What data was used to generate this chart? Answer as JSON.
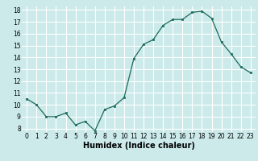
{
  "x": [
    0,
    1,
    2,
    3,
    4,
    5,
    6,
    7,
    8,
    9,
    10,
    11,
    12,
    13,
    14,
    15,
    16,
    17,
    18,
    19,
    20,
    21,
    22,
    23
  ],
  "y": [
    10.5,
    10.0,
    9.0,
    9.0,
    9.3,
    8.3,
    8.6,
    7.8,
    9.6,
    9.9,
    10.6,
    13.9,
    15.1,
    15.5,
    16.7,
    17.2,
    17.2,
    17.8,
    17.9,
    17.3,
    15.3,
    14.3,
    13.2,
    12.7
  ],
  "xlabel": "Humidex (Indice chaleur)",
  "ylim": [
    7.7,
    18.3
  ],
  "xlim": [
    -0.5,
    23.5
  ],
  "yticks": [
    8,
    9,
    10,
    11,
    12,
    13,
    14,
    15,
    16,
    17,
    18
  ],
  "xticks": [
    0,
    1,
    2,
    3,
    4,
    5,
    6,
    7,
    8,
    9,
    10,
    11,
    12,
    13,
    14,
    15,
    16,
    17,
    18,
    19,
    20,
    21,
    22,
    23
  ],
  "line_color": "#1a6b5a",
  "marker_color": "#1a6b5a",
  "bg_color": "#cceaea",
  "grid_color": "#ffffff",
  "tick_fontsize": 5.5,
  "xlabel_fontsize": 7
}
